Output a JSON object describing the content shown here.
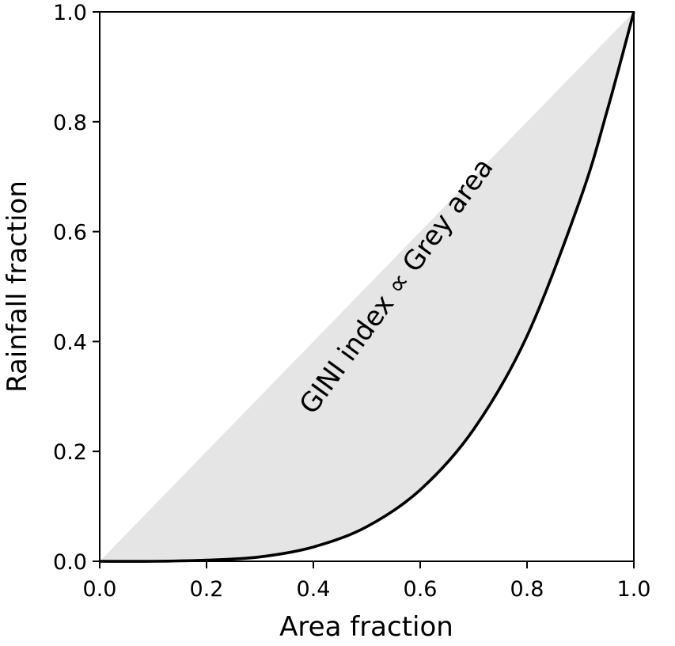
{
  "chart_data": {
    "type": "area",
    "xlabel": "Area fraction",
    "ylabel": "Rainfall fraction",
    "xlim": [
      0.0,
      1.0
    ],
    "ylim": [
      0.0,
      1.0
    ],
    "x_ticks": [
      "0.0",
      "0.2",
      "0.4",
      "0.6",
      "0.8",
      "1.0"
    ],
    "y_ticks": [
      "0.0",
      "0.2",
      "0.4",
      "0.6",
      "0.8",
      "1.0"
    ],
    "grid": false,
    "annotation": "GINI index ∝ Grey area",
    "series": [
      {
        "role": "equality-line",
        "x": [
          0.0,
          1.0
        ],
        "y": [
          0.0,
          1.0
        ]
      },
      {
        "role": "lorenz-curve",
        "x": [
          0.0,
          0.1,
          0.2,
          0.3,
          0.4,
          0.5,
          0.6,
          0.7,
          0.8,
          0.9,
          0.95,
          1.0
        ],
        "y": [
          0.0,
          0.0,
          0.002,
          0.008,
          0.026,
          0.063,
          0.13,
          0.24,
          0.41,
          0.66,
          0.82,
          1.0
        ]
      }
    ],
    "colors": {
      "fill": "#e5e5e5",
      "curve": "#000000",
      "axes": "#000000"
    }
  }
}
